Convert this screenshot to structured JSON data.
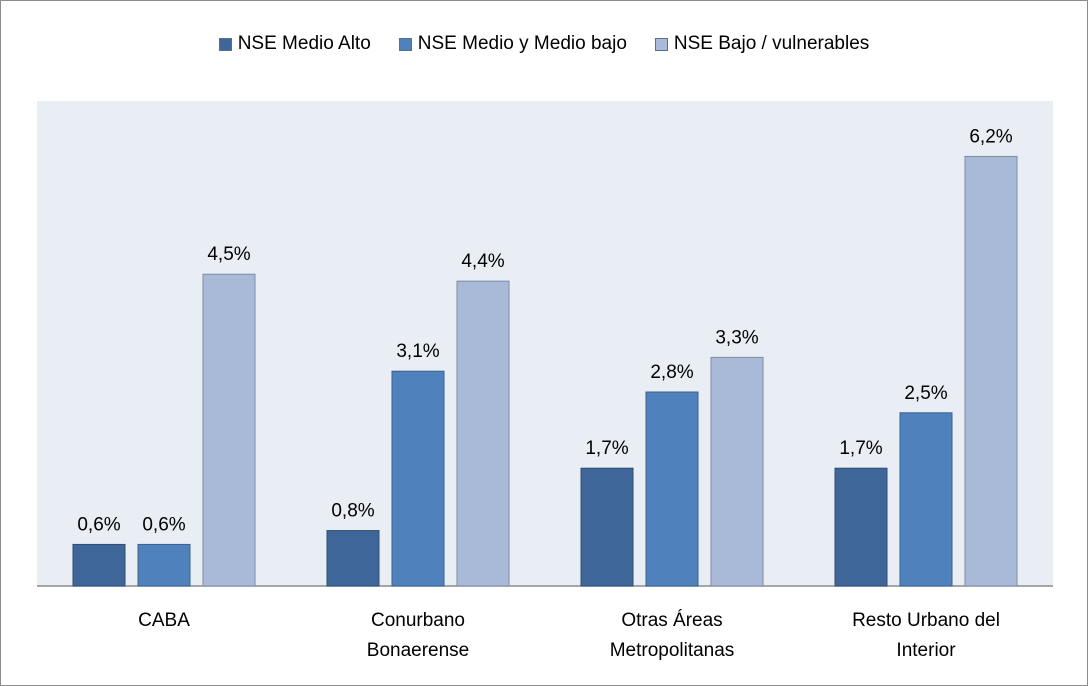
{
  "chart_data": {
    "type": "bar",
    "categories": [
      "CABA",
      "Conurbano\nBonaerense",
      "Otras Áreas\nMetropolitanas",
      "Resto Urbano del\nInterior"
    ],
    "series": [
      {
        "name": "NSE Medio Alto",
        "color": "#3f6699",
        "values": [
          0.6,
          0.8,
          1.7,
          1.7
        ],
        "value_labels": [
          "0,6%",
          "0,8%",
          "1,7%",
          "1,7%"
        ]
      },
      {
        "name": "NSE Medio y Medio bajo",
        "color": "#4f81bd",
        "values": [
          0.6,
          3.1,
          2.8,
          2.5
        ],
        "value_labels": [
          "0,6%",
          "3,1%",
          "2,8%",
          "2,5%"
        ]
      },
      {
        "name": "NSE Bajo / vulnerables",
        "color": "#a9bad9",
        "values": [
          4.5,
          4.4,
          3.3,
          6.2
        ],
        "value_labels": [
          "4,5%",
          "4,4%",
          "3,3%",
          "6,2%"
        ]
      }
    ],
    "ylim": [
      0,
      7
    ],
    "legend": "top"
  }
}
